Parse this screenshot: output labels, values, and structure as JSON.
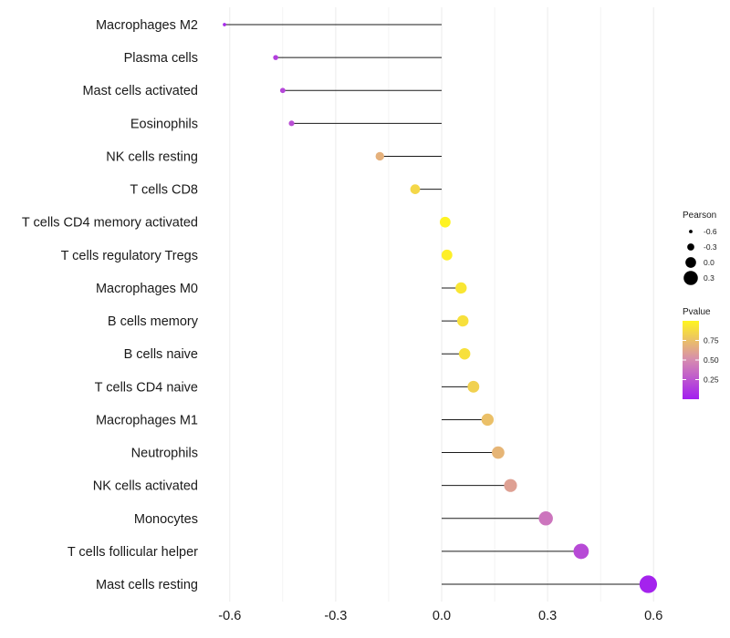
{
  "chart_data": {
    "type": "lollipop",
    "title": "",
    "xlabel": "",
    "ylabel": "",
    "xlim": [
      -0.62,
      0.62
    ],
    "x_ticks": [
      -0.6,
      -0.3,
      0.0,
      0.3,
      0.6
    ],
    "x_tick_labels": [
      "-0.6",
      "-0.3",
      "0.0",
      "0.3",
      "0.6"
    ],
    "grid": "vertical",
    "categories": [
      "Macrophages M2",
      "Plasma cells",
      "Mast cells activated",
      "Eosinophils",
      "NK cells resting",
      "T cells CD8",
      "T cells CD4 memory activated",
      "T cells regulatory  Tregs",
      "Macrophages M0",
      "B cells memory",
      "B cells naive",
      "T cells CD4 naive",
      "Macrophages M1",
      "Neutrophils",
      "NK cells activated",
      "Monocytes",
      "T cells follicular helper",
      "Mast cells resting"
    ],
    "pearson": [
      -0.615,
      -0.47,
      -0.45,
      -0.425,
      -0.175,
      -0.075,
      0.01,
      0.015,
      0.055,
      0.06,
      0.065,
      0.09,
      0.13,
      0.16,
      0.195,
      0.295,
      0.395,
      0.585
    ],
    "pvalue": [
      0.05,
      0.15,
      0.18,
      0.22,
      0.68,
      0.86,
      0.99,
      0.97,
      0.93,
      0.9,
      0.9,
      0.83,
      0.75,
      0.7,
      0.6,
      0.4,
      0.2,
      0.02
    ],
    "size_legend": {
      "title": "Pearson",
      "items": [
        {
          "label": "-0.6",
          "value": -0.6
        },
        {
          "label": "-0.3",
          "value": -0.3
        },
        {
          "label": "0.0",
          "value": 0.0
        },
        {
          "label": "0.3",
          "value": 0.3
        }
      ]
    },
    "color_legend": {
      "title": "Pvalue",
      "ticks": [
        {
          "label": "0.75",
          "value": 0.75
        },
        {
          "label": "0.50",
          "value": 0.5
        },
        {
          "label": "0.25",
          "value": 0.25
        }
      ],
      "range": [
        0.0,
        1.0
      ],
      "colors": {
        "low": "#a21ff0",
        "mid": "#d68bb0",
        "high": "#fff51f"
      }
    },
    "colors": {
      "stem": "#1a1a1a",
      "grid": "#ebebeb",
      "point_border": "#333333"
    }
  }
}
